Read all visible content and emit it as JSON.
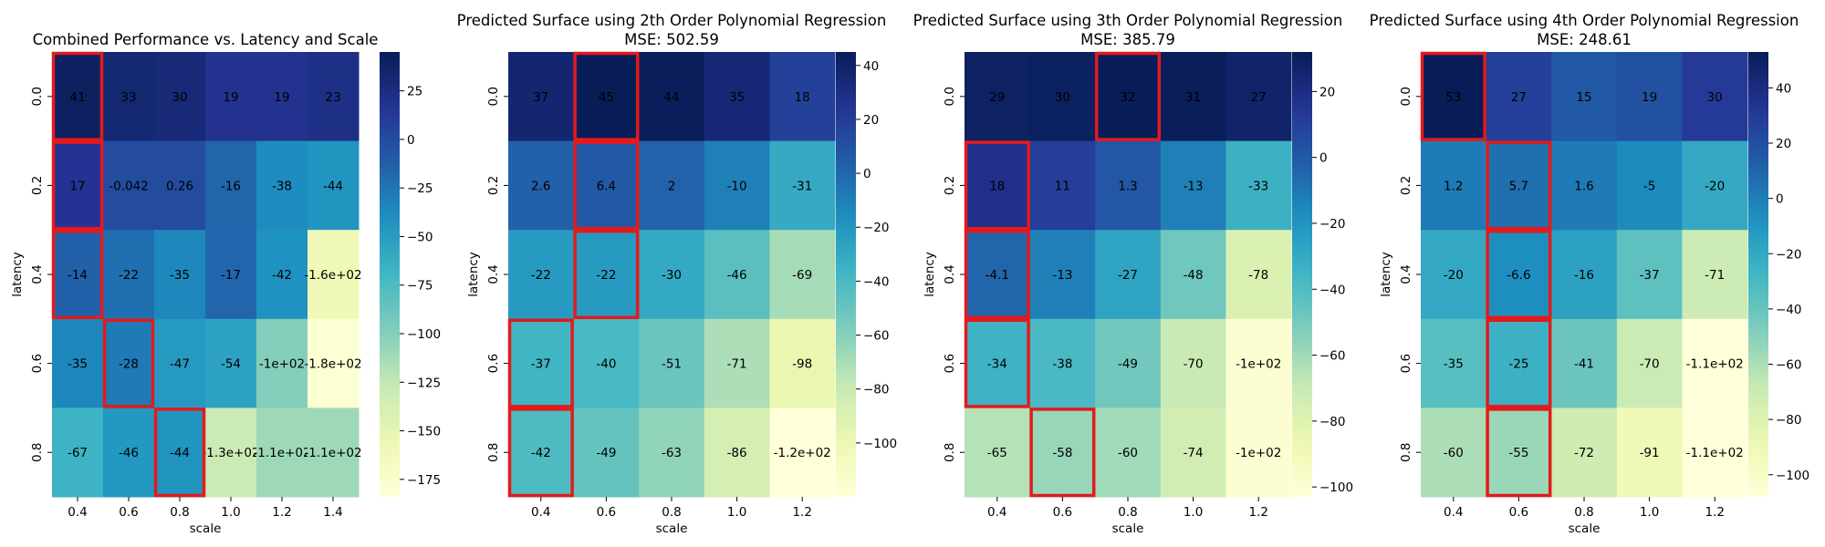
{
  "chart_data": [
    {
      "type": "heatmap",
      "title": "Combined Performance vs. Latency and Scale",
      "subtitle": "",
      "xlabel": "scale",
      "ylabel": "latency",
      "x_ticks": [
        "0.4",
        "0.6",
        "0.8",
        "1.0",
        "1.2",
        "1.4"
      ],
      "y_ticks": [
        "0.0",
        "0.2",
        "0.4",
        "0.6",
        "0.8"
      ],
      "values": [
        [
          41,
          33,
          30,
          19,
          19,
          23
        ],
        [
          17,
          -0.042,
          0.26,
          -16,
          -38,
          -44
        ],
        [
          -14,
          -22,
          -35,
          -17,
          -42,
          -160
        ],
        [
          -35,
          -28,
          -47,
          -54,
          -100,
          -180
        ],
        [
          -67,
          -46,
          -44,
          -130,
          -110,
          -110
        ]
      ],
      "labels": [
        [
          "41",
          "33",
          "30",
          "19",
          "19",
          "23"
        ],
        [
          "17",
          "-0.042",
          "0.26",
          "-16",
          "-38",
          "-44"
        ],
        [
          "-14",
          "-22",
          "-35",
          "-17",
          "-42",
          "-1.6e+02"
        ],
        [
          "-35",
          "-28",
          "-47",
          "-54",
          "-1e+02",
          "-1.8e+02"
        ],
        [
          "-67",
          "-46",
          "-44",
          "-1.3e+02",
          "-1.1e+02",
          "-1.1e+02"
        ]
      ],
      "highlighted_cells": [
        [
          0,
          0
        ],
        [
          1,
          0
        ],
        [
          2,
          0
        ],
        [
          3,
          1
        ],
        [
          4,
          2
        ]
      ],
      "highlight_color": "#e31a1c",
      "colormap": "YlGnBu",
      "vmin": -184,
      "vmax": 45,
      "colorbar_ticks": [
        "25",
        "0",
        "−25",
        "−50",
        "−75",
        "−100",
        "−125",
        "−150",
        "−175"
      ]
    },
    {
      "type": "heatmap",
      "title": "Predicted Surface using 2th Order Polynomial Regression",
      "subtitle": "MSE: 502.59",
      "xlabel": "scale",
      "ylabel": "latency",
      "x_ticks": [
        "0.4",
        "0.6",
        "0.8",
        "1.0",
        "1.2"
      ],
      "y_ticks": [
        "0.0",
        "0.2",
        "0.4",
        "0.6",
        "0.8"
      ],
      "values": [
        [
          37,
          45,
          44,
          35,
          18
        ],
        [
          2.6,
          6.4,
          2,
          -10,
          -31
        ],
        [
          -22,
          -22,
          -30,
          -46,
          -69
        ],
        [
          -37,
          -40,
          -51,
          -71,
          -98
        ],
        [
          -42,
          -49,
          -63,
          -86,
          -120
        ]
      ],
      "labels": [
        [
          "37",
          "45",
          "44",
          "35",
          "18"
        ],
        [
          "2.6",
          "6.4",
          "2",
          "-10",
          "-31"
        ],
        [
          "-22",
          "-22",
          "-30",
          "-46",
          "-69"
        ],
        [
          "-37",
          "-40",
          "-51",
          "-71",
          "-98"
        ],
        [
          "-42",
          "-49",
          "-63",
          "-86",
          "-1.2e+02"
        ]
      ],
      "highlighted_cells": [
        [
          0,
          1
        ],
        [
          1,
          1
        ],
        [
          2,
          1
        ],
        [
          3,
          0
        ],
        [
          4,
          0
        ]
      ],
      "highlight_color": "#e31a1c",
      "colormap": "YlGnBu",
      "vmin": -120,
      "vmax": 45,
      "colorbar_ticks": [
        "40",
        "20",
        "0",
        "−20",
        "−40",
        "−60",
        "−80",
        "−100"
      ]
    },
    {
      "type": "heatmap",
      "title": "Predicted Surface using 3th Order Polynomial Regression",
      "subtitle": "MSE: 385.79",
      "xlabel": "scale",
      "ylabel": "latency",
      "x_ticks": [
        "0.4",
        "0.6",
        "0.8",
        "1.0",
        "1.2"
      ],
      "y_ticks": [
        "0.0",
        "0.2",
        "0.4",
        "0.6",
        "0.8"
      ],
      "values": [
        [
          29,
          30,
          32,
          31,
          27
        ],
        [
          18,
          11,
          1.3,
          -13,
          -33
        ],
        [
          -4.1,
          -13,
          -27,
          -48,
          -78
        ],
        [
          -34,
          -38,
          -49,
          -70,
          -100
        ],
        [
          -65,
          -58,
          -60,
          -74,
          -100
        ]
      ],
      "labels": [
        [
          "29",
          "30",
          "32",
          "31",
          "27"
        ],
        [
          "18",
          "11",
          "1.3",
          "-13",
          "-33"
        ],
        [
          "-4.1",
          "-13",
          "-27",
          "-48",
          "-78"
        ],
        [
          "-34",
          "-38",
          "-49",
          "-70",
          "-1e+02"
        ],
        [
          "-65",
          "-58",
          "-60",
          "-74",
          "-1e+02"
        ]
      ],
      "highlighted_cells": [
        [
          0,
          2
        ],
        [
          1,
          0
        ],
        [
          2,
          0
        ],
        [
          3,
          0
        ],
        [
          4,
          1
        ]
      ],
      "highlight_color": "#e31a1c",
      "colormap": "YlGnBu",
      "vmin": -103,
      "vmax": 32,
      "colorbar_ticks": [
        "20",
        "0",
        "−20",
        "−40",
        "−60",
        "−80",
        "−100"
      ]
    },
    {
      "type": "heatmap",
      "title": "Predicted Surface using 4th Order Polynomial Regression",
      "subtitle": "MSE: 248.61",
      "xlabel": "scale",
      "ylabel": "latency",
      "x_ticks": [
        "0.4",
        "0.6",
        "0.8",
        "1.0",
        "1.2"
      ],
      "y_ticks": [
        "0.0",
        "0.2",
        "0.4",
        "0.6",
        "0.8"
      ],
      "values": [
        [
          53,
          27,
          15,
          19,
          30
        ],
        [
          1.2,
          5.7,
          1.6,
          -5,
          -20
        ],
        [
          -20,
          -6.6,
          -16,
          -37,
          -71
        ],
        [
          -35,
          -25,
          -41,
          -70,
          -110
        ],
        [
          -60,
          -55,
          -72,
          -91,
          -110
        ]
      ],
      "labels": [
        [
          "53",
          "27",
          "15",
          "19",
          "30"
        ],
        [
          "1.2",
          "5.7",
          "1.6",
          "-5",
          "-20"
        ],
        [
          "-20",
          "-6.6",
          "-16",
          "-37",
          "-71"
        ],
        [
          "-35",
          "-25",
          "-41",
          "-70",
          "-1.1e+02"
        ],
        [
          "-60",
          "-55",
          "-72",
          "-91",
          "-1.1e+02"
        ]
      ],
      "highlighted_cells": [
        [
          0,
          0
        ],
        [
          1,
          1
        ],
        [
          2,
          1
        ],
        [
          3,
          1
        ],
        [
          4,
          1
        ]
      ],
      "highlight_color": "#e31a1c",
      "colormap": "YlGnBu",
      "vmin": -108,
      "vmax": 53,
      "colorbar_ticks": [
        "40",
        "20",
        "0",
        "−20",
        "−40",
        "−60",
        "−80",
        "−100"
      ]
    }
  ]
}
